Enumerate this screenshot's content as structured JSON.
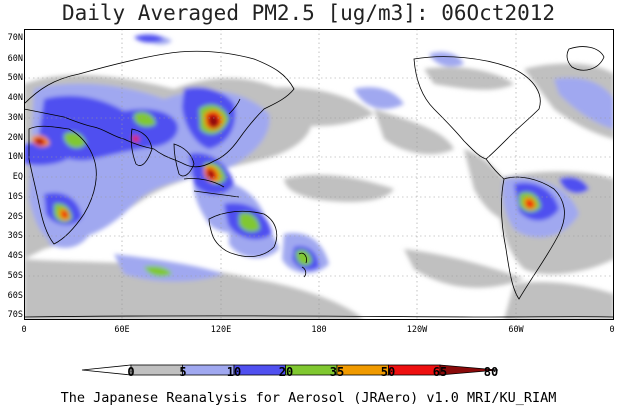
{
  "title": "Daily Averaged PM2.5 [ug/m3]: 06Oct2012",
  "footer": "The Japanese Reanalysis for Aerosol (JRAero) v1.0 MRI/KU_RIAM",
  "lat_labels": [
    "70N",
    "60N",
    "50N",
    "40N",
    "30N",
    "20N",
    "10N",
    "EQ",
    "10S",
    "20S",
    "30S",
    "40S",
    "50S",
    "60S",
    "70S"
  ],
  "lon_labels": [
    "0",
    "60E",
    "120E",
    "180",
    "120W",
    "60W",
    "0"
  ],
  "colorbar": {
    "levels": [
      "0",
      "5",
      "10",
      "20",
      "35",
      "50",
      "65",
      "80"
    ],
    "colors": [
      "#ffffff",
      "#c0c0c0",
      "#a0a8f0",
      "#5050f0",
      "#80c830",
      "#f09a00",
      "#ee1010",
      "#8a0a0a"
    ]
  },
  "map_colors": {
    "land_outline": "#000000",
    "grid": "#999999"
  }
}
